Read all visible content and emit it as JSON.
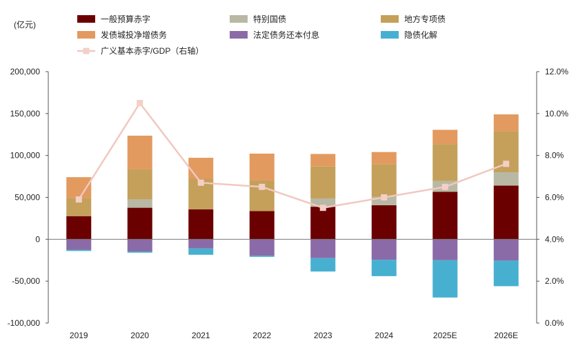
{
  "chart_data": {
    "type": "bar",
    "subtype": "stacked bar with line on secondary axis",
    "unit_label": "(亿元)",
    "categories": [
      "2019",
      "2020",
      "2021",
      "2022",
      "2023",
      "2024",
      "2025E",
      "2026E"
    ],
    "y_left": {
      "min": -100000,
      "max": 200000,
      "step": 50000,
      "tick_labels": [
        "-100,000",
        "-50,000",
        "0",
        "50,000",
        "100,000",
        "150,000",
        "200,000"
      ]
    },
    "y_right": {
      "min": 0,
      "max": 12,
      "step": 2,
      "tick_labels": [
        "0.0%",
        "2.0%",
        "4.0%",
        "6.0%",
        "8.0%",
        "10.0%",
        "12.0%"
      ]
    },
    "grid": false,
    "legend_position": "top",
    "series": [
      {
        "name": "一般预算赤字",
        "color": "#6b0000",
        "values": [
          27600,
          37600,
          35700,
          33700,
          38800,
          40600,
          56600,
          64000
        ]
      },
      {
        "name": "特别国债",
        "color": "#b8b8a4",
        "values": [
          0,
          10000,
          0,
          0,
          10000,
          10000,
          13000,
          16000
        ]
      },
      {
        "name": "地方专项债",
        "color": "#c4a05a",
        "values": [
          21500,
          36000,
          36500,
          36500,
          38000,
          39000,
          44000,
          49000
        ]
      },
      {
        "name": "发债城投净增债务",
        "color": "#e39a5f",
        "values": [
          25000,
          40000,
          25000,
          32000,
          15000,
          14500,
          17000,
          20000
        ]
      },
      {
        "name": "法定债务还本付息",
        "color": "#8b6aa8",
        "values": [
          -12500,
          -14500,
          -11000,
          -19500,
          -22500,
          -24500,
          -25000,
          -25500
        ]
      },
      {
        "name": "隐债化解",
        "color": "#47b0d0",
        "values": [
          -1500,
          -1500,
          -7500,
          -1500,
          -16000,
          -19500,
          -44500,
          -30500
        ]
      }
    ],
    "line_series": {
      "name": "广义基本赤字/GDP（右轴）",
      "axis": "right",
      "color": "#f0c8c0",
      "marker_color": "#f4cfc8",
      "values": [
        5.9,
        10.5,
        6.7,
        6.5,
        5.5,
        6.0,
        6.5,
        7.6
      ]
    }
  }
}
